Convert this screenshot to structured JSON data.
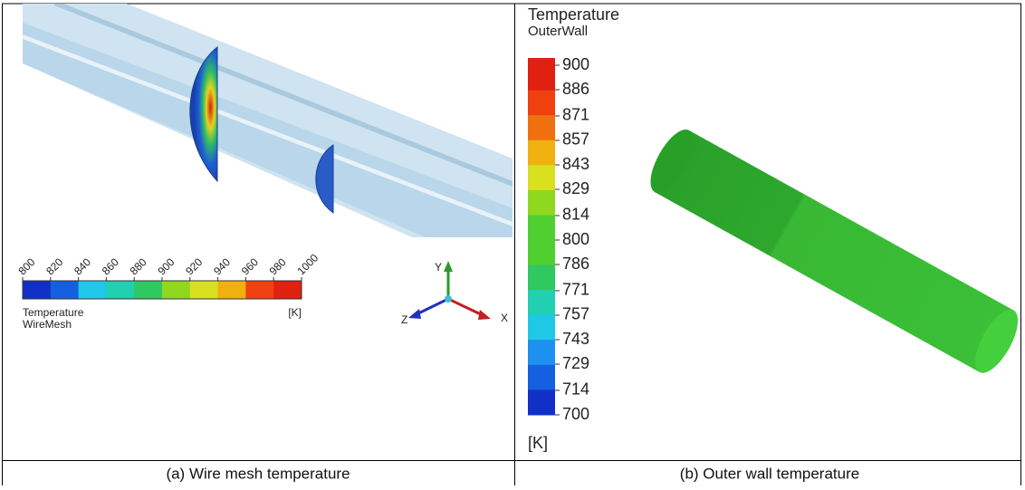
{
  "panel_a": {
    "legend": {
      "ticks": [
        800,
        820,
        840,
        860,
        880,
        900,
        920,
        940,
        960,
        980,
        1000
      ],
      "title": "Temperature",
      "subtitle": "WireMesh",
      "unit": "[K]"
    },
    "axes": {
      "x": "X",
      "y": "Y",
      "z": "Z"
    },
    "caption": "(a) Wire mesh temperature"
  },
  "panel_b": {
    "legend": {
      "title": "Temperature",
      "subtitle": "OuterWall",
      "ticks": [
        900,
        886,
        871,
        857,
        843,
        829,
        814,
        800,
        786,
        771,
        757,
        743,
        729,
        714,
        700
      ],
      "unit": "[K]"
    },
    "caption": "(b) Outer wall temperature"
  }
}
